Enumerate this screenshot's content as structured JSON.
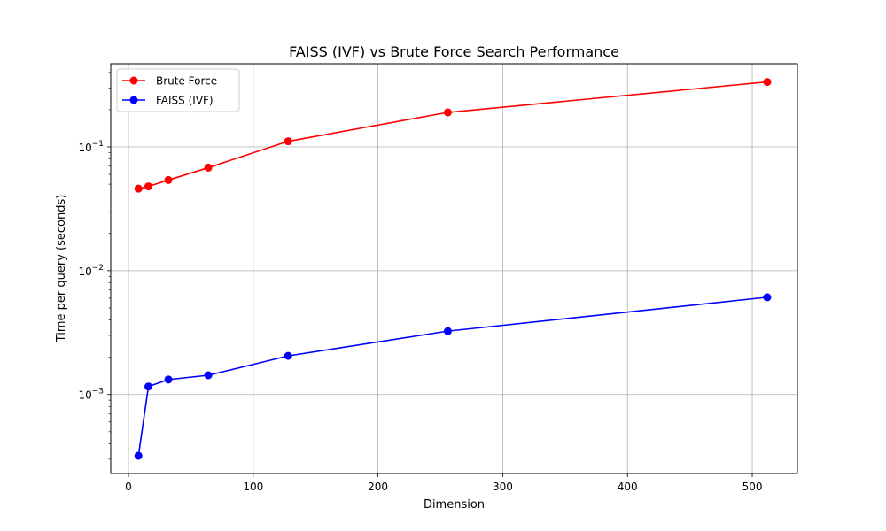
{
  "chart_data": {
    "type": "line",
    "title": "FAISS (IVF) vs Brute Force Search Performance",
    "xlabel": "Dimension",
    "ylabel": "Time per query (seconds)",
    "xlim": [
      -14.2,
      536.2
    ],
    "ylim": [
      0.00023,
      0.47
    ],
    "yscale": "log",
    "grid": true,
    "legend_position": "top-left",
    "x": [
      8,
      16,
      32,
      64,
      128,
      256,
      512
    ],
    "x_ticks": [
      {
        "value": 0,
        "label": "0"
      },
      {
        "value": 100,
        "label": "100"
      },
      {
        "value": 200,
        "label": "200"
      },
      {
        "value": 300,
        "label": "300"
      },
      {
        "value": 400,
        "label": "400"
      },
      {
        "value": 500,
        "label": "500"
      }
    ],
    "y_ticks": [
      {
        "value": 0.001,
        "base": "10",
        "exp": "−3"
      },
      {
        "value": 0.01,
        "base": "10",
        "exp": "−2"
      },
      {
        "value": 0.1,
        "base": "10",
        "exp": "−1"
      }
    ],
    "series": [
      {
        "name": "Brute Force",
        "color": "#ff0000",
        "values": [
          0.046,
          0.048,
          0.054,
          0.068,
          0.111,
          0.19,
          0.335
        ]
      },
      {
        "name": "FAISS (IVF)",
        "color": "#0000ff",
        "values": [
          0.00032,
          0.00116,
          0.00132,
          0.00143,
          0.00205,
          0.00325,
          0.0061
        ]
      }
    ]
  }
}
